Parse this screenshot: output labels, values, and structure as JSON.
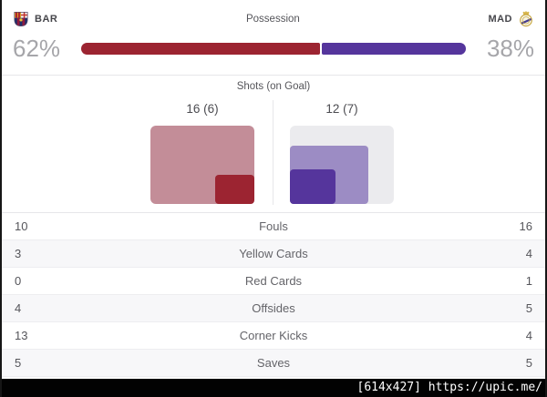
{
  "header": {
    "home_team": "BAR",
    "away_team": "MAD",
    "possession_title": "Possession",
    "home_possession_label": "62%",
    "away_possession_label": "38%",
    "home_pct": 62,
    "away_pct": 38
  },
  "shots": {
    "title": "Shots (on Goal)",
    "home_label": "16 (6)",
    "away_label": "12 (7)",
    "home_total": 16,
    "home_on_goal": 6,
    "away_total": 12,
    "away_on_goal": 7,
    "max_total": 16
  },
  "stats": {
    "rows": [
      {
        "home": "10",
        "label": "Fouls",
        "away": "16"
      },
      {
        "home": "3",
        "label": "Yellow Cards",
        "away": "4"
      },
      {
        "home": "0",
        "label": "Red Cards",
        "away": "1"
      },
      {
        "home": "4",
        "label": "Offsides",
        "away": "5"
      },
      {
        "home": "13",
        "label": "Corner Kicks",
        "away": "4"
      },
      {
        "home": "5",
        "label": "Saves",
        "away": "5"
      }
    ]
  },
  "colors": {
    "home_primary": "#9c2431",
    "home_light": "#c38d98",
    "away_primary": "#55359c",
    "away_light": "#9c8cc4",
    "neutral_box": "#ebebee"
  },
  "watermark": "[614x427] https://upic.me/"
}
